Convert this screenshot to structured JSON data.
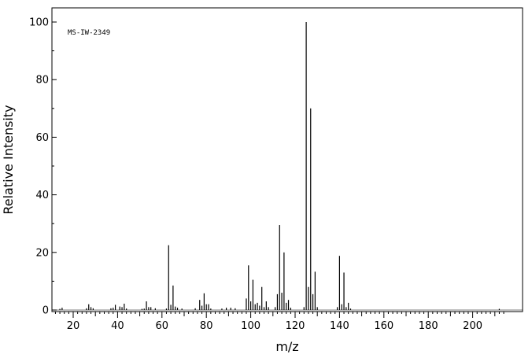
{
  "chart_data": {
    "type": "bar",
    "title": "",
    "annotation": "MS-IW-2349",
    "xlabel": "m/z",
    "ylabel": "Relative Intensity",
    "xlim": [
      10,
      216
    ],
    "ylim": [
      0,
      104
    ],
    "x_ticks": [
      20,
      40,
      60,
      80,
      100,
      120,
      140,
      160,
      180,
      200
    ],
    "y_ticks": [
      0,
      20,
      40,
      60,
      80,
      100
    ],
    "grid": false,
    "legend": "none",
    "colors": {
      "peaks": "#000000",
      "axes": "#000000",
      "background": "#ffffff"
    },
    "peaks": [
      {
        "x": 14,
        "y": 0.4
      },
      {
        "x": 15,
        "y": 0.8
      },
      {
        "x": 26,
        "y": 0.6
      },
      {
        "x": 27,
        "y": 2.0
      },
      {
        "x": 28,
        "y": 1.0
      },
      {
        "x": 29,
        "y": 0.6
      },
      {
        "x": 37,
        "y": 0.6
      },
      {
        "x": 38,
        "y": 0.8
      },
      {
        "x": 39,
        "y": 1.8
      },
      {
        "x": 41,
        "y": 1.2
      },
      {
        "x": 42,
        "y": 1.0
      },
      {
        "x": 43,
        "y": 2.2
      },
      {
        "x": 44,
        "y": 0.5
      },
      {
        "x": 51,
        "y": 0.4
      },
      {
        "x": 52,
        "y": 0.5
      },
      {
        "x": 53,
        "y": 3.0
      },
      {
        "x": 54,
        "y": 1.0
      },
      {
        "x": 55,
        "y": 1.0
      },
      {
        "x": 57,
        "y": 0.6
      },
      {
        "x": 62,
        "y": 0.5
      },
      {
        "x": 63,
        "y": 22.5
      },
      {
        "x": 64,
        "y": 1.8
      },
      {
        "x": 65,
        "y": 8.5
      },
      {
        "x": 66,
        "y": 1.2
      },
      {
        "x": 67,
        "y": 0.8
      },
      {
        "x": 69,
        "y": 0.5
      },
      {
        "x": 75,
        "y": 0.6
      },
      {
        "x": 77,
        "y": 3.5
      },
      {
        "x": 78,
        "y": 1.5
      },
      {
        "x": 79,
        "y": 5.8
      },
      {
        "x": 80,
        "y": 2.0
      },
      {
        "x": 81,
        "y": 2.0
      },
      {
        "x": 82,
        "y": 0.5
      },
      {
        "x": 87,
        "y": 0.5
      },
      {
        "x": 89,
        "y": 0.8
      },
      {
        "x": 91,
        "y": 0.8
      },
      {
        "x": 93,
        "y": 0.6
      },
      {
        "x": 98,
        "y": 4.0
      },
      {
        "x": 99,
        "y": 15.5
      },
      {
        "x": 100,
        "y": 3.0
      },
      {
        "x": 101,
        "y": 10.5
      },
      {
        "x": 102,
        "y": 2.0
      },
      {
        "x": 103,
        "y": 2.5
      },
      {
        "x": 104,
        "y": 1.5
      },
      {
        "x": 105,
        "y": 8.0
      },
      {
        "x": 106,
        "y": 1.0
      },
      {
        "x": 107,
        "y": 3.0
      },
      {
        "x": 108,
        "y": 1.0
      },
      {
        "x": 111,
        "y": 1.0
      },
      {
        "x": 112,
        "y": 5.5
      },
      {
        "x": 113,
        "y": 29.5
      },
      {
        "x": 114,
        "y": 6.0
      },
      {
        "x": 115,
        "y": 20.0
      },
      {
        "x": 116,
        "y": 2.5
      },
      {
        "x": 117,
        "y": 3.5
      },
      {
        "x": 118,
        "y": 0.8
      },
      {
        "x": 124,
        "y": 1.0
      },
      {
        "x": 125,
        "y": 100.0
      },
      {
        "x": 126,
        "y": 8.0
      },
      {
        "x": 127,
        "y": 70.0
      },
      {
        "x": 128,
        "y": 5.5
      },
      {
        "x": 129,
        "y": 13.3
      },
      {
        "x": 130,
        "y": 1.0
      },
      {
        "x": 139,
        "y": 1.0
      },
      {
        "x": 140,
        "y": 18.8
      },
      {
        "x": 141,
        "y": 2.0
      },
      {
        "x": 142,
        "y": 13.0
      },
      {
        "x": 143,
        "y": 1.0
      },
      {
        "x": 144,
        "y": 2.5
      },
      {
        "x": 145,
        "y": 0.5
      },
      {
        "x": 212,
        "y": 0.4
      }
    ]
  }
}
